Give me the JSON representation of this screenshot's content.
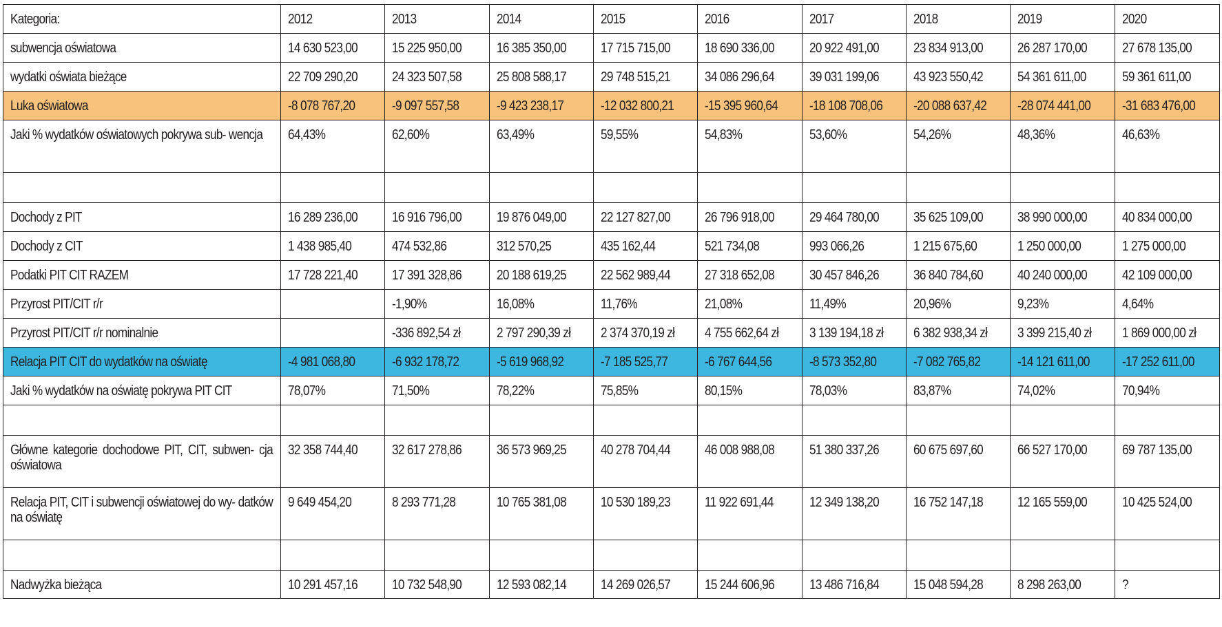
{
  "columns": [
    "Kategoria:",
    "2012",
    "2013",
    "2014",
    "2015",
    "2016",
    "2017",
    "2018",
    "2019",
    "2020"
  ],
  "colors": {
    "luka_highlight": "#f7c27b",
    "relacja_highlight": "#3db7e0",
    "border": "#231f20"
  },
  "rows": [
    {
      "label": "subwencja oświatowa",
      "values": [
        "14 630 523,00",
        "15 225 950,00",
        "16 385 350,00",
        "17 715 715,00",
        "18 690 336,00",
        "20 922 491,00",
        "23 834 913,00",
        "26 287 170,00",
        "27 678 135,00"
      ]
    },
    {
      "label": "wydatki oświata bieżące",
      "values": [
        "22 709 290,20",
        "24 323 507,58",
        "25 808 588,17",
        "29 748 515,21",
        "34 086 296,64",
        "39 031 199,06",
        "43 923 550,42",
        "54 361 611,00",
        "59 361 611,00"
      ]
    },
    {
      "label": "Luka oświatowa",
      "values": [
        "-8 078 767,20",
        "-9 097 557,58",
        "-9 423 238,17",
        "-12 032 800,21",
        "-15 395 960,64",
        "-18 108 708,06",
        "-20 088 637,42",
        "-28 074 441,00",
        "-31 683 476,00"
      ]
    },
    {
      "label": "Jaki % wydatków oświatowych pokrywa sub- wencja",
      "values": [
        "64,43%",
        "62,60%",
        "63,49%",
        "59,55%",
        "54,83%",
        "53,60%",
        "54,26%",
        "48,36%",
        "46,63%"
      ]
    },
    {
      "label": "",
      "values": [
        "",
        "",
        "",
        "",
        "",
        "",
        "",
        "",
        ""
      ]
    },
    {
      "label": "Dochody z PIT",
      "values": [
        "16 289 236,00",
        "16 916 796,00",
        "19 876 049,00",
        "22 127 827,00",
        "26 796 918,00",
        "29 464 780,00",
        "35 625 109,00",
        "38 990 000,00",
        "40 834 000,00"
      ]
    },
    {
      "label": "Dochody z CIT",
      "values": [
        "1 438 985,40",
        "474 532,86",
        "312 570,25",
        "435 162,44",
        "521 734,08",
        "993 066,26",
        "1 215 675,60",
        "1 250 000,00",
        "1 275 000,00"
      ]
    },
    {
      "label": "Podatki PIT CIT RAZEM",
      "values": [
        "17 728 221,40",
        "17 391 328,86",
        "20 188 619,25",
        "22 562 989,44",
        "27 318 652,08",
        "30 457 846,26",
        "36 840 784,60",
        "40 240 000,00",
        "42 109 000,00"
      ]
    },
    {
      "label": "Przyrost PIT/CIT r/r",
      "values": [
        "",
        "-1,90%",
        "16,08%",
        "11,76%",
        "21,08%",
        "11,49%",
        "20,96%",
        "9,23%",
        "4,64%"
      ]
    },
    {
      "label": "Przyrost PIT/CIT r/r nominalnie",
      "values": [
        "",
        "-336 892,54 zł",
        "2 797 290,39 zł",
        "2 374 370,19 zł",
        "4 755 662,64 zł",
        "3 139 194,18 zł",
        "6 382 938,34 zł",
        "3 399 215,40 zł",
        "1 869 000,00 zł"
      ]
    },
    {
      "label": "Relacja PIT CIT do wydatków na oświatę",
      "values": [
        "-4 981 068,80",
        "-6 932 178,72",
        "-5 619 968,92",
        "-7 185 525,77",
        "-6 767 644,56",
        "-8 573 352,80",
        "-7 082 765,82",
        "-14 121 611,00",
        "-17 252 611,00"
      ]
    },
    {
      "label": "Jaki % wydatków na oświatę pokrywa PIT CIT",
      "values": [
        "78,07%",
        "71,50%",
        "78,22%",
        "75,85%",
        "80,15%",
        "78,03%",
        "83,87%",
        "74,02%",
        "70,94%"
      ]
    },
    {
      "label": "",
      "values": [
        "",
        "",
        "",
        "",
        "",
        "",
        "",
        "",
        ""
      ]
    },
    {
      "label": "Główne kategorie dochodowe PIT, CIT, subwen- cja oświatowa",
      "values": [
        "32 358 744,40",
        "32 617 278,86",
        "36 573 969,25",
        "40 278 704,44",
        "46 008 988,08",
        "51 380 337,26",
        "60 675 697,60",
        "66 527 170,00",
        "69 787 135,00"
      ]
    },
    {
      "label": "Relacja PIT, CIT i subwencji oświatowej do wy- datków na oświatę",
      "values": [
        "9 649 454,20",
        "8 293 771,28",
        "10 765 381,08",
        "10 530 189,23",
        "11 922 691,44",
        "12 349 138,20",
        "16 752 147,18",
        "12 165 559,00",
        "10 425 524,00"
      ]
    },
    {
      "label": "",
      "values": [
        "",
        "",
        "",
        "",
        "",
        "",
        "",
        "",
        ""
      ]
    },
    {
      "label": "Nadwyżka bieżąca",
      "values": [
        "10 291 457,16",
        "10 732 548,90",
        "12 593 082,14",
        "14 269 026,57",
        "15 244 606,96",
        "13 486 716,84",
        "15 048 594,28",
        "8 298 263,00",
        "?"
      ]
    }
  ]
}
